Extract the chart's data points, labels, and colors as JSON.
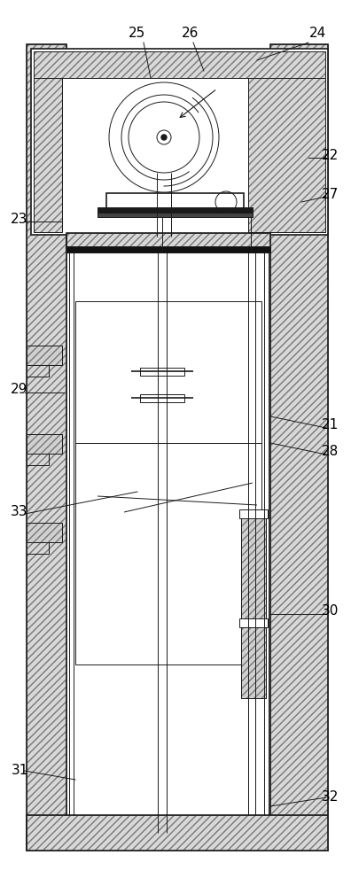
{
  "fig_width": 3.96,
  "fig_height": 10.0,
  "dpi": 100,
  "bg_color": "#ffffff",
  "line_color": "#1a1a1a",
  "gray_hatch": "#777777",
  "dark_fill": "#333333"
}
